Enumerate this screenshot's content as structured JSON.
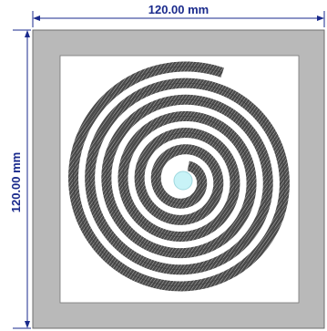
{
  "dimensions": {
    "width_label": "120.00 mm",
    "height_label": "120.00 mm"
  },
  "colors": {
    "dimension": "#1a2a8c",
    "frame": "#b9b9b9",
    "frame_border": "#6e6e6e",
    "board": "#ffffff",
    "spiral_dark": "#3a3a3a",
    "spiral_light": "#cfcfcf",
    "center_hole": "#c8f3f7"
  },
  "spiral": {
    "turns": 6
  }
}
